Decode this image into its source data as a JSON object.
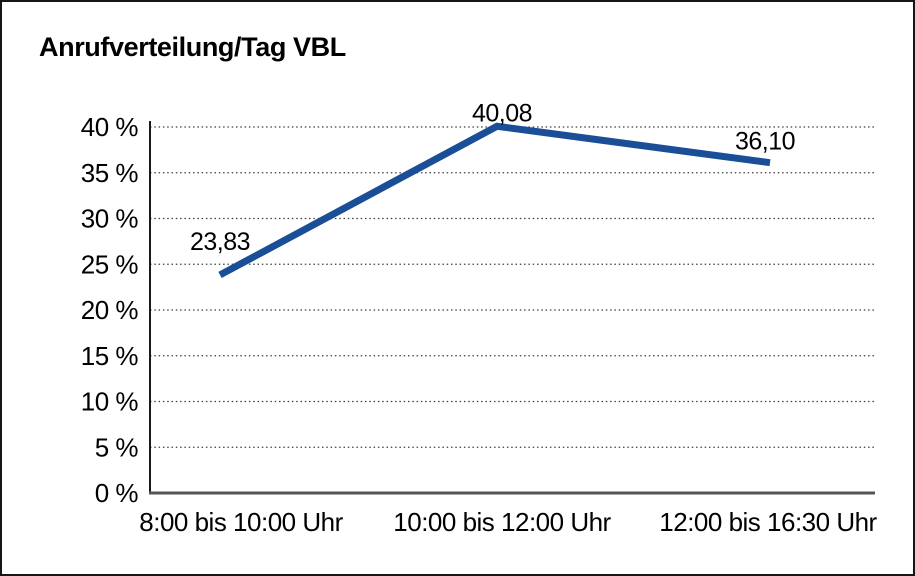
{
  "window": {
    "title": "Anrufverteilung/Tag VBL"
  },
  "chart_data": {
    "type": "line",
    "title": "Anrufverteilung/Tag VBL",
    "categories": [
      "8:00 bis 10:00 Uhr",
      "10:00 bis 12:00 Uhr",
      "12:00 bis 16:30 Uhr"
    ],
    "series": [
      {
        "name": "Anrufverteilung/Tag VBL",
        "values": [
          23.83,
          40.08,
          36.1
        ]
      }
    ],
    "point_labels": [
      "23,83",
      "40,08",
      "36,10"
    ],
    "xlabel": "",
    "ylabel": "",
    "ylim": [
      0,
      40
    ],
    "yticks": [
      0,
      5,
      10,
      15,
      20,
      25,
      30,
      35,
      40
    ],
    "ytick_labels": [
      "0 %",
      "5 %",
      "10 %",
      "15 %",
      "20 %",
      "25 %",
      "30 %",
      "35 %",
      "40 %"
    ],
    "grid": "horizontal-dotted",
    "legend": "none",
    "line_color": "#1a4e96",
    "decimal_style": "comma"
  }
}
